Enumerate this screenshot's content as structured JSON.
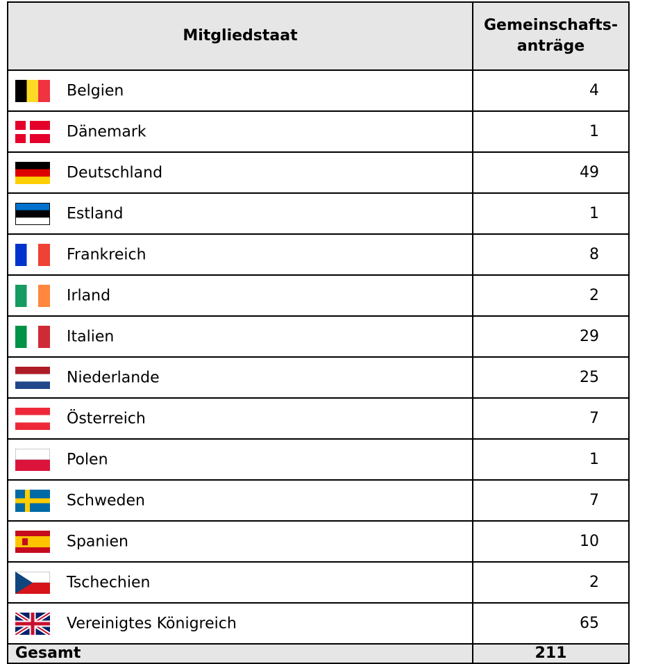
{
  "table": {
    "header": {
      "country": "Mitgliedstaat",
      "count_lines": [
        "Gemeinschafts-",
        "anträge"
      ]
    },
    "rows": [
      {
        "country": "Belgien",
        "count": 4
      },
      {
        "country": "Dänemark",
        "count": 1
      },
      {
        "country": "Deutschland",
        "count": 49
      },
      {
        "country": "Estland",
        "count": 1
      },
      {
        "country": "Frankreich",
        "count": 8
      },
      {
        "country": "Irland",
        "count": 2
      },
      {
        "country": "Italien",
        "count": 29
      },
      {
        "country": "Niederlande",
        "count": 25
      },
      {
        "country": "Österreich",
        "count": 7
      },
      {
        "country": "Polen",
        "count": 1
      },
      {
        "country": "Schweden",
        "count": 7
      },
      {
        "country": "Spanien",
        "count": 10
      },
      {
        "country": "Tschechien",
        "count": 2
      },
      {
        "country": "Vereinigtes Königreich",
        "count": 65
      }
    ],
    "total": {
      "label": "Gesamt",
      "count": 211
    }
  }
}
